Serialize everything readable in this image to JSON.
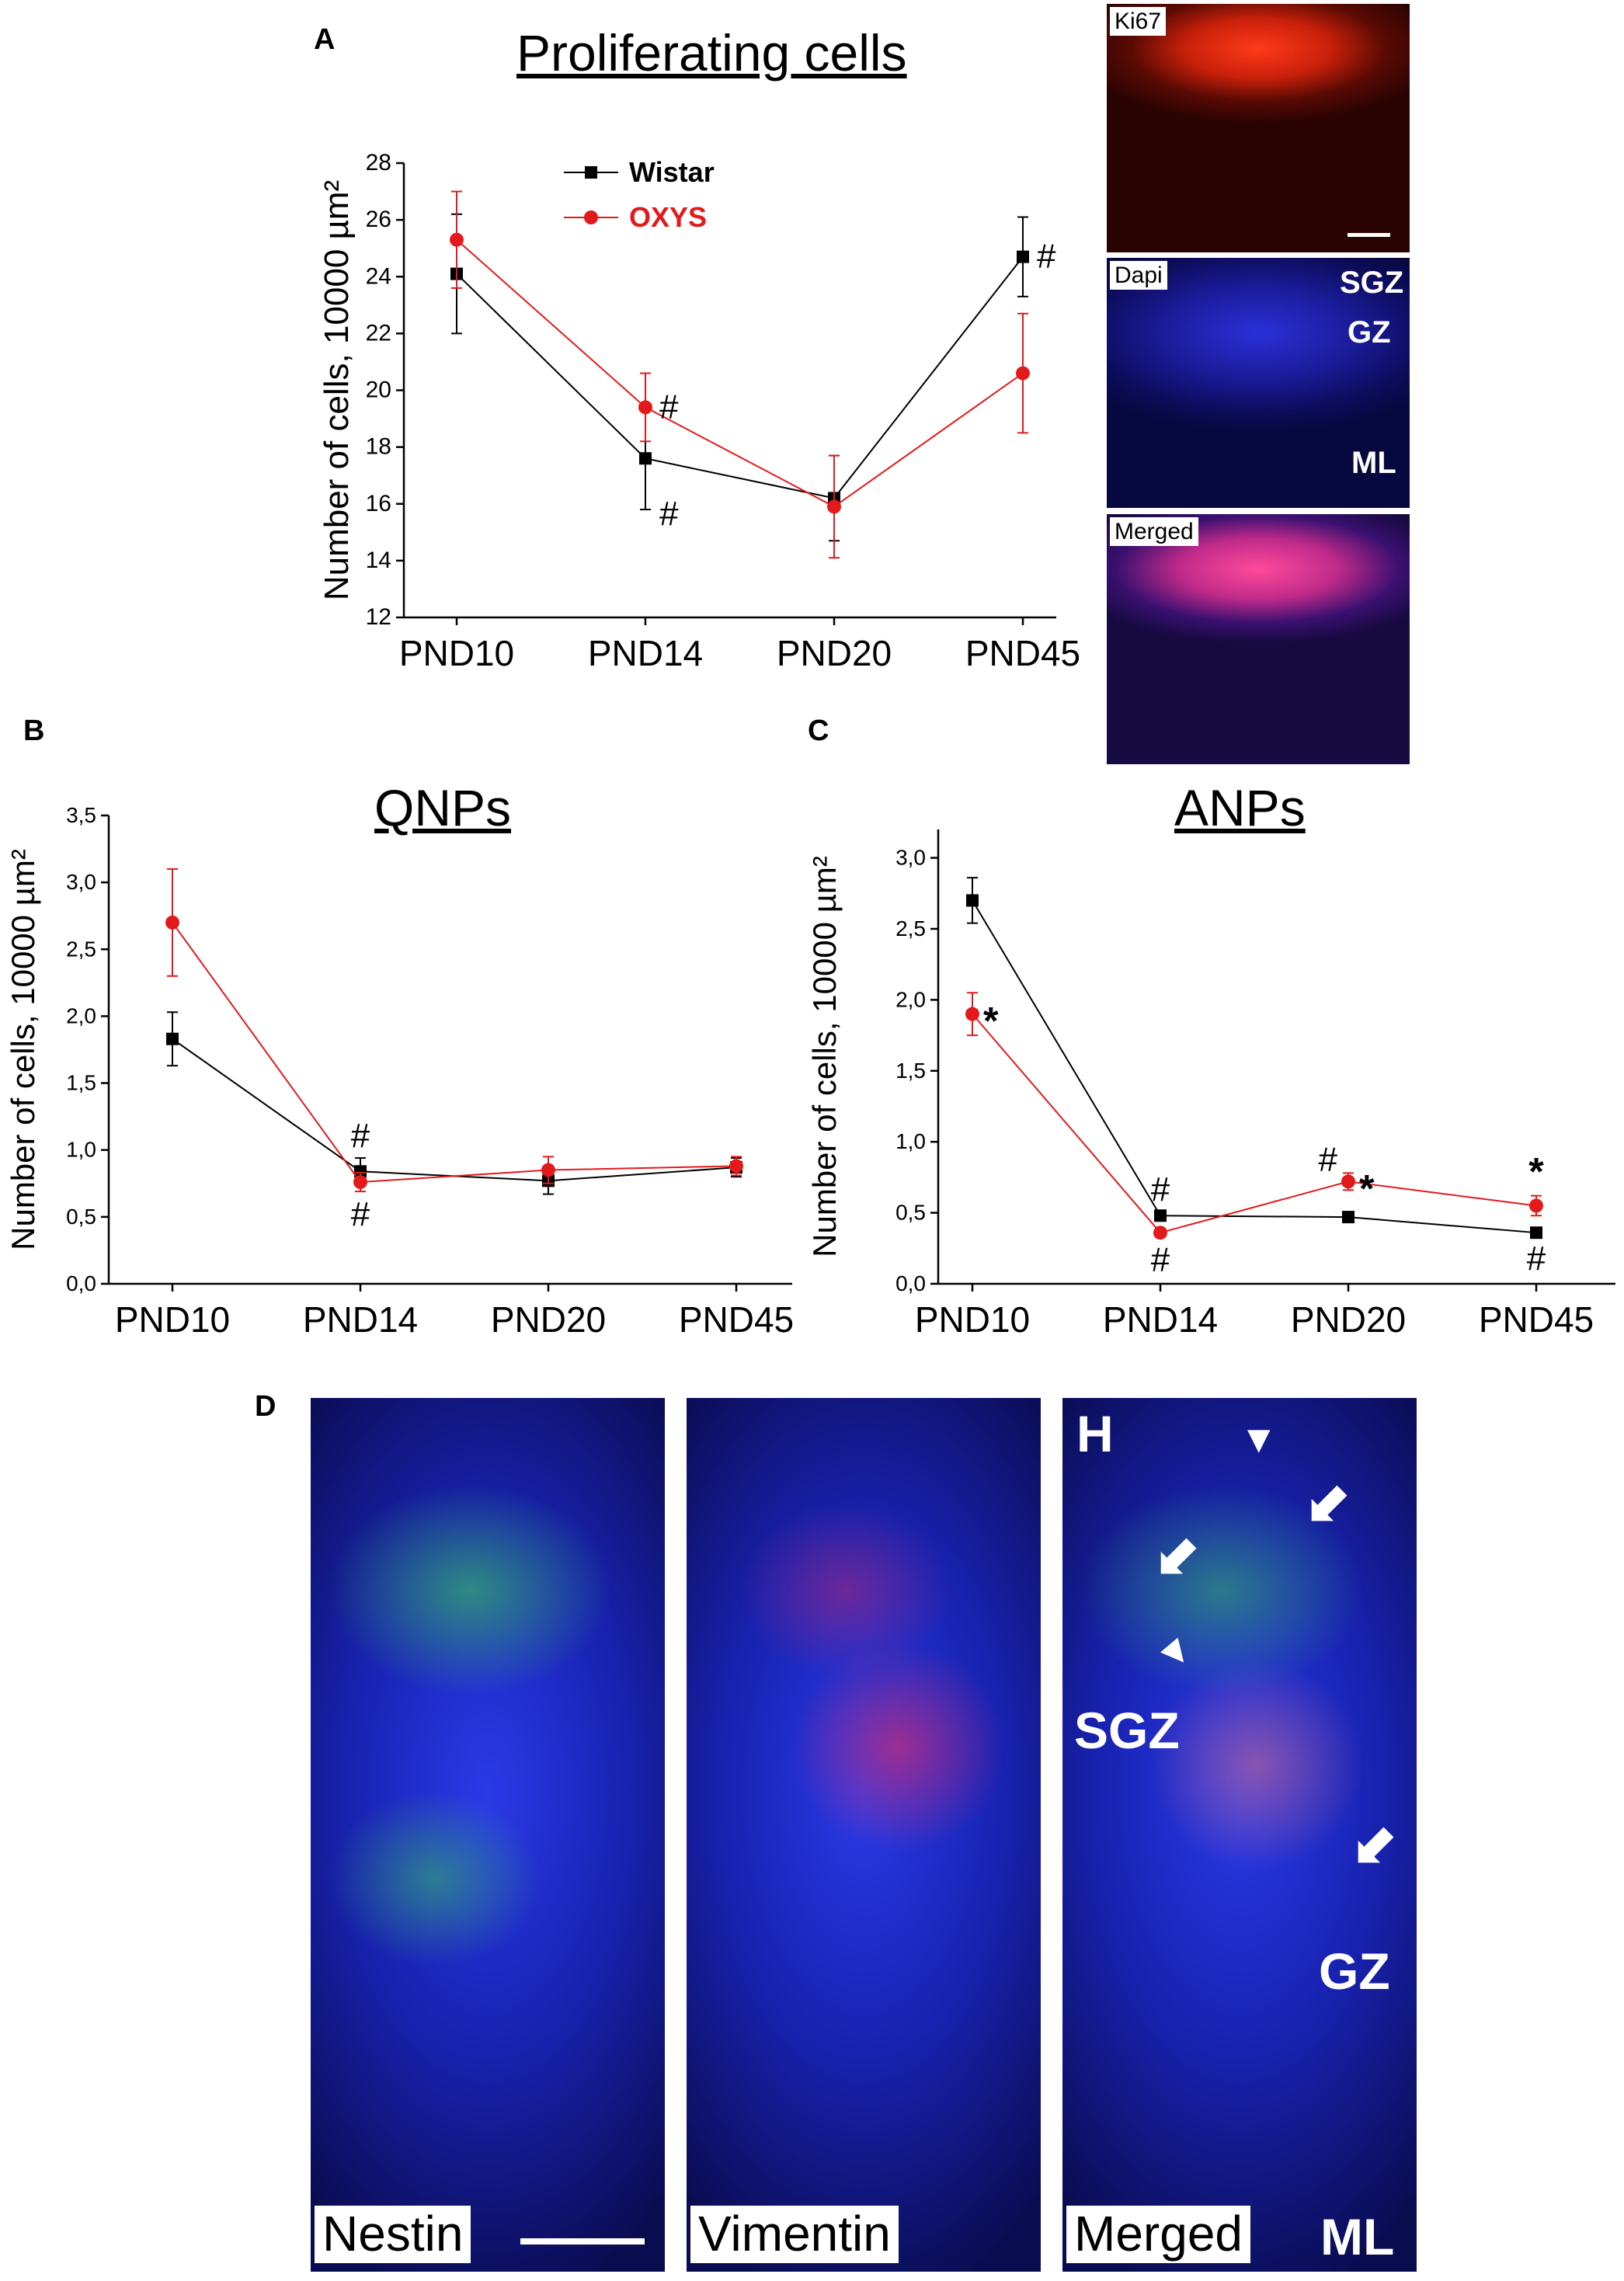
{
  "panels": {
    "A": "A",
    "B": "B",
    "C": "C",
    "D": "D"
  },
  "chart_data": [
    {
      "id": "A",
      "type": "line",
      "title": "Proliferating cells",
      "xlabel": "",
      "ylabel": "Number of cells, 10000 µm²",
      "categories": [
        "PND10",
        "PND14",
        "PND20",
        "PND45"
      ],
      "ylim": [
        12,
        28
      ],
      "yticks": [
        "12",
        "14",
        "16",
        "18",
        "20",
        "22",
        "24",
        "26",
        "28"
      ],
      "legend_position": "top-left",
      "series": [
        {
          "name": "Wistar",
          "color": "#000000",
          "marker": "square",
          "values": [
            24.1,
            17.6,
            16.2,
            24.7
          ],
          "errors": [
            2.1,
            1.8,
            1.5,
            1.4
          ]
        },
        {
          "name": "OXYS",
          "color": "#e31a1c",
          "marker": "circle",
          "values": [
            25.3,
            19.4,
            15.9,
            20.6
          ],
          "errors": [
            1.7,
            1.2,
            1.8,
            2.1
          ]
        }
      ],
      "annotations": [
        {
          "text": "#",
          "category": "PND14",
          "series": "OXYS",
          "place": "right"
        },
        {
          "text": "#",
          "category": "PND14",
          "series": "Wistar",
          "place": "below-right"
        },
        {
          "text": "#",
          "category": "PND45",
          "series": "Wistar",
          "place": "right"
        }
      ]
    },
    {
      "id": "B",
      "type": "line",
      "title": "QNPs",
      "xlabel": "",
      "ylabel": "Number of cells, 10000 µm²",
      "categories": [
        "PND10",
        "PND14",
        "PND20",
        "PND45"
      ],
      "ylim": [
        0,
        3.5
      ],
      "yticks": [
        "0,0",
        "0,5",
        "1,0",
        "1,5",
        "2,0",
        "2,5",
        "3,0",
        "3,5"
      ],
      "series": [
        {
          "name": "",
          "color": "#000000",
          "marker": "square",
          "values": [
            1.83,
            0.84,
            0.77,
            0.87
          ],
          "errors": [
            0.2,
            0.1,
            0.1,
            0.07
          ]
        },
        {
          "name": "",
          "color": "#e31a1c",
          "marker": "circle",
          "values": [
            2.7,
            0.76,
            0.85,
            0.88
          ],
          "errors": [
            0.4,
            0.07,
            0.1,
            0.07
          ]
        }
      ],
      "annotations": [
        {
          "text": "#",
          "category": "PND14",
          "series": 0,
          "place": "above"
        },
        {
          "text": "#",
          "category": "PND14",
          "series": 1,
          "place": "below"
        }
      ]
    },
    {
      "id": "C",
      "type": "line",
      "title": "ANPs",
      "xlabel": "",
      "ylabel": "Number of cells, 10000 µm²",
      "categories": [
        "PND10",
        "PND14",
        "PND20",
        "PND45"
      ],
      "ylim": [
        0,
        3.2
      ],
      "yticks": [
        "0,0",
        "0,5",
        "1,0",
        "1,5",
        "2,0",
        "2,5",
        "3,0"
      ],
      "series": [
        {
          "name": "",
          "color": "#000000",
          "marker": "square",
          "values": [
            2.7,
            0.48,
            0.47,
            0.36
          ],
          "errors": [
            0.16,
            0.03,
            0.03,
            0.02
          ]
        },
        {
          "name": "",
          "color": "#e31a1c",
          "marker": "circle",
          "values": [
            1.9,
            0.36,
            0.72,
            0.55
          ],
          "errors": [
            0.15,
            0.03,
            0.06,
            0.07
          ]
        }
      ],
      "annotations": [
        {
          "text": "*",
          "category": "PND10",
          "series": 1,
          "place": "right"
        },
        {
          "text": "#",
          "category": "PND14",
          "series": 0,
          "place": "above"
        },
        {
          "text": "#",
          "category": "PND14",
          "series": 1,
          "place": "below"
        },
        {
          "text": "#",
          "category": "PND20",
          "series": 1,
          "place": "left"
        },
        {
          "text": "*",
          "category": "PND20",
          "series": 1,
          "place": "right"
        },
        {
          "text": "*",
          "category": "PND45",
          "series": 1,
          "place": "above"
        },
        {
          "text": "#",
          "category": "PND45",
          "series": 0,
          "place": "below"
        }
      ]
    }
  ],
  "micrographs_a": [
    {
      "label": "Ki67",
      "tags": []
    },
    {
      "label": "Dapi",
      "tags": [
        "SGZ",
        "GZ",
        "ML"
      ]
    },
    {
      "label": "Merged",
      "tags": []
    }
  ],
  "micrographs_d": {
    "labels": [
      "Nestin",
      "Vimentin",
      "Merged"
    ],
    "tags": {
      "h": "H",
      "sgz": "SGZ",
      "gz": "GZ",
      "ml": "ML"
    }
  }
}
